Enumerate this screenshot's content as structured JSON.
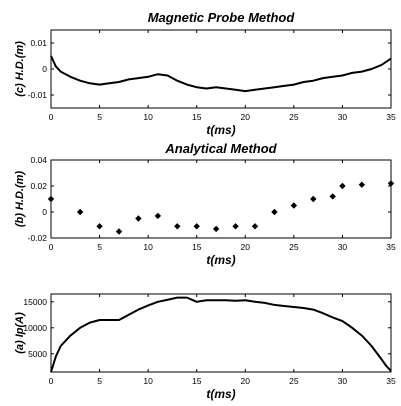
{
  "chart_data": [
    {
      "type": "line",
      "title": "Magnetic Probe Method",
      "xlabel": "t(ms)",
      "ylabel": "(c) H.D.(m)",
      "xlim": [
        0,
        35
      ],
      "ylim": [
        -0.015,
        0.015
      ],
      "xticks": [
        0,
        5,
        10,
        15,
        20,
        25,
        30,
        35
      ],
      "yticks": [
        0.01,
        0,
        -0.01
      ],
      "ytick_labels": [
        "0.01",
        "0",
        "-0.01"
      ],
      "grid": false,
      "x": [
        0,
        0.5,
        1,
        2,
        3,
        4,
        5,
        6,
        7,
        8,
        9,
        10,
        11,
        12,
        13,
        14,
        15,
        16,
        17,
        18,
        19,
        20,
        21,
        22,
        23,
        24,
        25,
        26,
        27,
        28,
        29,
        30,
        31,
        32,
        33,
        34,
        35
      ],
      "values": [
        0.005,
        0.001,
        -0.001,
        -0.003,
        -0.0045,
        -0.0055,
        -0.006,
        -0.0055,
        -0.005,
        -0.004,
        -0.0035,
        -0.003,
        -0.002,
        -0.0025,
        -0.0045,
        -0.006,
        -0.007,
        -0.0075,
        -0.007,
        -0.0075,
        -0.008,
        -0.0085,
        -0.008,
        -0.0075,
        -0.007,
        -0.0065,
        -0.006,
        -0.005,
        -0.0045,
        -0.0035,
        -0.003,
        -0.0025,
        -0.0015,
        -0.001,
        0,
        0.0015,
        0.004
      ]
    },
    {
      "type": "scatter",
      "title": "Analytical Method",
      "xlabel": "t(ms)",
      "ylabel": "(b) H.D.(m)",
      "xlim": [
        0,
        35
      ],
      "ylim": [
        -0.02,
        0.04
      ],
      "xticks": [
        0,
        5,
        10,
        15,
        20,
        25,
        30,
        35
      ],
      "yticks": [
        0.04,
        0.02,
        0,
        -0.02
      ],
      "ytick_labels": [
        "0.04",
        "0.02",
        "0",
        "-0.02"
      ],
      "grid": false,
      "x": [
        0,
        3,
        5,
        7,
        9,
        11,
        13,
        15,
        17,
        19,
        21,
        23,
        25,
        27,
        29,
        30,
        32,
        35
      ],
      "values": [
        0.01,
        0,
        -0.011,
        -0.015,
        -0.005,
        -0.003,
        -0.011,
        -0.011,
        -0.013,
        -0.011,
        -0.011,
        0,
        0.005,
        0.01,
        0.012,
        0.02,
        0.021,
        0.022
      ]
    },
    {
      "type": "line",
      "title": "",
      "xlabel": "t(ms)",
      "ylabel": "(a) Ip(A)",
      "xlim": [
        0,
        35
      ],
      "ylim": [
        1500,
        16500
      ],
      "xticks": [
        0,
        5,
        10,
        15,
        20,
        25,
        30,
        35
      ],
      "yticks": [
        15000,
        10000,
        5000
      ],
      "ytick_labels": [
        "15000",
        "10000",
        "5000"
      ],
      "grid": false,
      "x": [
        0,
        0.5,
        1,
        2,
        3,
        4,
        5,
        6,
        7,
        8,
        9,
        10,
        11,
        12,
        13,
        14,
        15,
        16,
        17,
        18,
        19,
        20,
        21,
        22,
        23,
        24,
        25,
        26,
        27,
        28,
        29,
        30,
        31,
        32,
        33,
        34,
        34.5,
        35
      ],
      "values": [
        1500,
        4500,
        6500,
        8500,
        10000,
        11000,
        11500,
        11500,
        11500,
        12500,
        13500,
        14300,
        15000,
        15400,
        15800,
        15800,
        15000,
        15300,
        15300,
        15300,
        15200,
        15300,
        15000,
        14800,
        14400,
        14200,
        14000,
        13800,
        13500,
        12800,
        12000,
        11300,
        10000,
        8500,
        6500,
        4000,
        2700,
        1700
      ]
    }
  ]
}
